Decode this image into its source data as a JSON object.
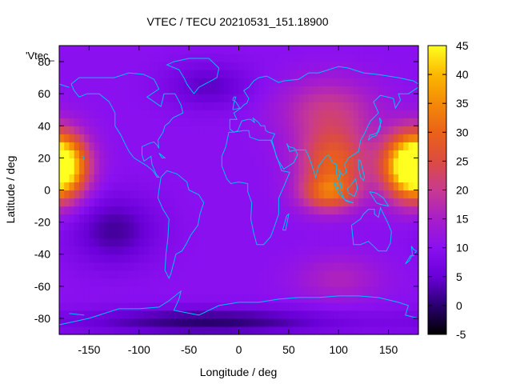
{
  "chart_data": {
    "type": "heatmap",
    "title": "VTEC / TECU 20210531_151.18900",
    "xlabel": "Longitude / deg",
    "ylabel": "Latitude / deg",
    "series_label": "'Vtec_",
    "xlim": [
      -180,
      180
    ],
    "ylim": [
      -90,
      90
    ],
    "x_ticks": [
      -150,
      -100,
      -50,
      0,
      50,
      100,
      150
    ],
    "y_ticks": [
      -80,
      -60,
      -40,
      -20,
      0,
      20,
      40,
      60,
      80
    ],
    "colorbar": {
      "range": [
        -5,
        45
      ],
      "ticks": [
        -5,
        0,
        5,
        10,
        15,
        20,
        25,
        30,
        35,
        40,
        45
      ],
      "palette": [
        "#000000",
        "#2a0070",
        "#6a00d8",
        "#8a10f0",
        "#a81ec8",
        "#c83a90",
        "#dc4c40",
        "#ea6218",
        "#f48a08",
        "#fbb800",
        "#ffff20"
      ]
    },
    "grid_step_deg": 5,
    "background_level": 10,
    "features": [
      {
        "name": "pacific-west-crest",
        "lon": -182,
        "lat": 15,
        "value": 36,
        "sigma_lon": 20,
        "sigma_lat": 14
      },
      {
        "name": "asia-crest-north",
        "lon": 95,
        "lat": 18,
        "value": 28,
        "sigma_lon": 25,
        "sigma_lat": 14
      },
      {
        "name": "asia-crest-south",
        "lon": 90,
        "lat": -2,
        "value": 27,
        "sigma_lon": 20,
        "sigma_lat": 8
      },
      {
        "name": "pacific-east-crest",
        "lon": 175,
        "lat": 15,
        "value": 36,
        "sigma_lon": 20,
        "sigma_lat": 14
      },
      {
        "name": "asia-north-band",
        "lon": 90,
        "lat": 50,
        "value": 20,
        "sigma_lon": 35,
        "sigma_lat": 14
      },
      {
        "name": "southern-ocean-patch",
        "lon": 100,
        "lat": -55,
        "value": 16,
        "sigma_lon": 30,
        "sigma_lat": 10
      },
      {
        "name": "pacific-trough",
        "lon": -125,
        "lat": -25,
        "value": 2,
        "sigma_lon": 30,
        "sigma_lat": 15
      },
      {
        "name": "north-atlantic-trough",
        "lon": -30,
        "lat": 65,
        "value": 4,
        "sigma_lon": 30,
        "sigma_lat": 10
      },
      {
        "name": "antarctic-low",
        "lon": -30,
        "lat": -82,
        "value": 0,
        "sigma_lon": 90,
        "sigma_lat": 6
      }
    ],
    "colors": {
      "coastline": "#00bfff",
      "border": "#000000"
    }
  }
}
